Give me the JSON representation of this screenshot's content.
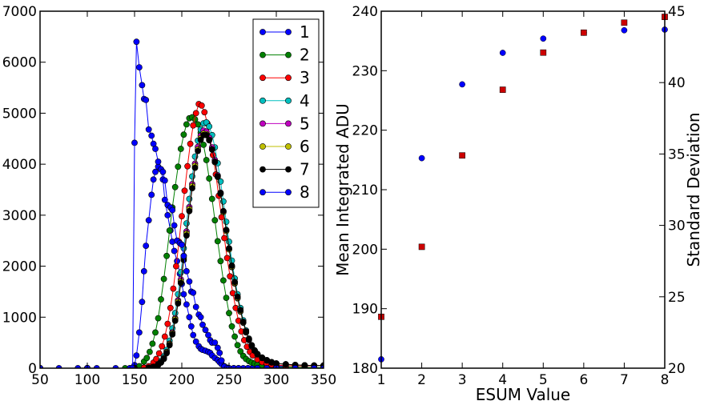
{
  "chart_data": [
    {
      "type": "line",
      "title": "",
      "xlabel": "",
      "ylabel": "",
      "xlim": [
        50,
        350
      ],
      "ylim": [
        0,
        7000
      ],
      "x_ticks": [
        50,
        100,
        150,
        200,
        250,
        300,
        350
      ],
      "y_ticks": [
        0,
        1000,
        2000,
        3000,
        4000,
        5000,
        6000,
        7000
      ],
      "legend_placement": "top-right",
      "grid": false,
      "series": [
        {
          "name": "1",
          "color": "#0000ff",
          "x": [
            50,
            70,
            90,
            110,
            130,
            145,
            148,
            150,
            152,
            155,
            158,
            160,
            162,
            165,
            168,
            170,
            172,
            175,
            178,
            180,
            182,
            185,
            188,
            190,
            192,
            195,
            198,
            200,
            202,
            205,
            208,
            210,
            212,
            215,
            218,
            220,
            222,
            225,
            228,
            230,
            232,
            235,
            238,
            240,
            242,
            245,
            248,
            250,
            255,
            260,
            265,
            270,
            275,
            280,
            285,
            290,
            295,
            300,
            305,
            310,
            320,
            330,
            340,
            350
          ],
          "y": [
            0,
            0,
            0,
            0,
            0,
            0,
            5,
            60,
            250,
            700,
            1300,
            1900,
            2400,
            2900,
            3400,
            3700,
            3850,
            3950,
            3900,
            3700,
            3300,
            3000,
            2700,
            2480,
            2300,
            2100,
            1850,
            1650,
            1450,
            1250,
            1000,
            820,
            650,
            520,
            430,
            380,
            360,
            340,
            320,
            300,
            250,
            200,
            160,
            120,
            80,
            40,
            10,
            0,
            0,
            0,
            0,
            0,
            0,
            0,
            0,
            0,
            0,
            0,
            0,
            0,
            0,
            0,
            0,
            0
          ]
        },
        {
          "name": "2",
          "color": "#008000",
          "x": [
            50,
            100,
            140,
            150,
            155,
            160,
            163,
            166,
            169,
            172,
            175,
            178,
            181,
            184,
            187,
            190,
            193,
            196,
            199,
            202,
            205,
            208,
            211,
            214,
            217,
            220,
            223,
            226,
            229,
            232,
            235,
            238,
            241,
            244,
            247,
            250,
            253,
            256,
            259,
            262,
            265,
            268,
            271,
            274,
            277,
            280,
            285,
            290,
            300,
            310,
            320,
            330,
            340,
            350
          ],
          "y": [
            0,
            0,
            0,
            5,
            40,
            130,
            200,
            320,
            480,
            700,
            980,
            1350,
            1750,
            2200,
            2700,
            3150,
            3550,
            3950,
            4300,
            4580,
            4780,
            4900,
            4920,
            4880,
            4780,
            4620,
            4380,
            4080,
            3720,
            3320,
            2900,
            2490,
            2100,
            1720,
            1380,
            1080,
            820,
            620,
            450,
            330,
            240,
            180,
            140,
            110,
            90,
            70,
            50,
            40,
            30,
            25,
            20,
            15,
            12,
            10
          ]
        },
        {
          "name": "3",
          "color": "#ff0000",
          "x": [
            50,
            100,
            150,
            160,
            165,
            170,
            173,
            176,
            179,
            182,
            185,
            188,
            191,
            194,
            197,
            200,
            203,
            206,
            209,
            212,
            215,
            218,
            221,
            224,
            227,
            230,
            233,
            236,
            239,
            242,
            245,
            248,
            251,
            254,
            257,
            260,
            263,
            266,
            269,
            272,
            275,
            280,
            285,
            290,
            295,
            300,
            310,
            320,
            330,
            340,
            350
          ],
          "y": [
            0,
            0,
            0,
            10,
            40,
            110,
            180,
            290,
            430,
            620,
            870,
            1180,
            1560,
            2000,
            2480,
            2980,
            3480,
            3960,
            4400,
            4760,
            5000,
            5180,
            5150,
            5020,
            4800,
            4520,
            4180,
            3800,
            3380,
            2960,
            2550,
            2160,
            1800,
            1470,
            1180,
            930,
            720,
            550,
            420,
            320,
            250,
            170,
            120,
            90,
            70,
            60,
            50,
            45,
            45,
            45,
            55
          ]
        },
        {
          "name": "4",
          "color": "#00bfbf",
          "x": [
            50,
            100,
            150,
            165,
            170,
            175,
            178,
            181,
            184,
            187,
            190,
            193,
            196,
            199,
            202,
            205,
            208,
            211,
            214,
            217,
            220,
            223,
            226,
            229,
            232,
            235,
            238,
            241,
            244,
            247,
            250,
            253,
            256,
            259,
            262,
            265,
            268,
            271,
            274,
            277,
            280,
            285,
            290,
            295,
            300,
            310,
            320,
            330,
            340,
            350
          ],
          "y": [
            0,
            0,
            0,
            10,
            30,
            80,
            140,
            230,
            360,
            540,
            780,
            1080,
            1450,
            1880,
            2350,
            2840,
            3320,
            3760,
            4150,
            4460,
            4680,
            4800,
            4820,
            4740,
            4570,
            4330,
            4020,
            3660,
            3270,
            2870,
            2480,
            2110,
            1760,
            1450,
            1180,
            940,
            740,
            580,
            450,
            350,
            280,
            200,
            150,
            110,
            90,
            75,
            60,
            55,
            50,
            50
          ]
        },
        {
          "name": "5",
          "color": "#bf00bf",
          "x": [
            50,
            100,
            150,
            165,
            170,
            175,
            178,
            181,
            184,
            187,
            190,
            193,
            196,
            199,
            202,
            205,
            208,
            211,
            214,
            217,
            220,
            223,
            226,
            229,
            232,
            235,
            238,
            241,
            244,
            247,
            250,
            253,
            256,
            259,
            262,
            265,
            268,
            271,
            274,
            277,
            280,
            285,
            290,
            295,
            300,
            310,
            320,
            330,
            340,
            350
          ],
          "y": [
            0,
            0,
            0,
            8,
            25,
            70,
            120,
            200,
            320,
            480,
            700,
            980,
            1330,
            1740,
            2200,
            2680,
            3160,
            3610,
            4010,
            4340,
            4560,
            4660,
            4640,
            4520,
            4330,
            4080,
            3780,
            3440,
            3070,
            2700,
            2330,
            1980,
            1660,
            1370,
            1110,
            890,
            700,
            550,
            430,
            340,
            270,
            200,
            150,
            115,
            90,
            75,
            62,
            55,
            52,
            50
          ]
        },
        {
          "name": "6",
          "color": "#bfbf00",
          "x": [
            50,
            100,
            150,
            165,
            170,
            175,
            178,
            181,
            184,
            187,
            190,
            193,
            196,
            199,
            202,
            205,
            208,
            211,
            214,
            217,
            220,
            223,
            226,
            229,
            232,
            235,
            238,
            241,
            244,
            247,
            250,
            253,
            256,
            259,
            262,
            265,
            268,
            271,
            274,
            277,
            280,
            285,
            290,
            295,
            300,
            310,
            320,
            330,
            340,
            350
          ],
          "y": [
            0,
            0,
            0,
            8,
            25,
            65,
            115,
            190,
            310,
            470,
            680,
            960,
            1300,
            1700,
            2160,
            2640,
            3120,
            3570,
            3970,
            4290,
            4510,
            4600,
            4590,
            4480,
            4290,
            4040,
            3750,
            3420,
            3060,
            2690,
            2330,
            1990,
            1670,
            1380,
            1120,
            900,
            710,
            560,
            440,
            345,
            275,
            205,
            155,
            118,
            92,
            76,
            63,
            56,
            52,
            50
          ]
        },
        {
          "name": "7",
          "color": "#000000",
          "x": [
            50,
            100,
            150,
            165,
            170,
            175,
            178,
            181,
            184,
            187,
            190,
            193,
            196,
            199,
            202,
            205,
            208,
            211,
            214,
            217,
            220,
            223,
            226,
            229,
            232,
            235,
            238,
            241,
            244,
            247,
            250,
            253,
            256,
            259,
            262,
            265,
            268,
            271,
            274,
            277,
            280,
            285,
            290,
            295,
            300,
            310,
            320,
            330,
            340,
            350
          ],
          "y": [
            0,
            0,
            0,
            8,
            22,
            60,
            110,
            180,
            295,
            450,
            660,
            930,
            1270,
            1670,
            2120,
            2600,
            3080,
            3530,
            3930,
            4260,
            4480,
            4570,
            4570,
            4470,
            4290,
            4050,
            3760,
            3430,
            3080,
            2710,
            2350,
            2010,
            1690,
            1400,
            1140,
            910,
            720,
            570,
            445,
            350,
            280,
            208,
            158,
            120,
            94,
            77,
            64,
            57,
            53,
            50
          ]
        },
        {
          "name": "8",
          "color": "#0000ff",
          "x": [
            50,
            100,
            145,
            148,
            150,
            152,
            155,
            158,
            160,
            162,
            165,
            168,
            170,
            172,
            175,
            178,
            180,
            182,
            185,
            188,
            190,
            192,
            195,
            198,
            200,
            202,
            205,
            208,
            210,
            212,
            215,
            218,
            220,
            222,
            225,
            228,
            230,
            232,
            235,
            238,
            240,
            242,
            245,
            248,
            250,
            255,
            260,
            270,
            280,
            290,
            300,
            320,
            340,
            350
          ],
          "y": [
            0,
            0,
            0,
            5,
            4420,
            6400,
            5900,
            5550,
            5280,
            5260,
            4680,
            4560,
            4400,
            4300,
            4050,
            3900,
            3850,
            3680,
            3200,
            3150,
            3100,
            2800,
            2500,
            2450,
            2420,
            2200,
            1900,
            1700,
            1500,
            1480,
            1200,
            1050,
            1000,
            850,
            750,
            650,
            550,
            500,
            500,
            400,
            300,
            150,
            30,
            0,
            0,
            0,
            0,
            0,
            0,
            0,
            0,
            0,
            0,
            0
          ]
        }
      ]
    },
    {
      "type": "scatter",
      "title": "",
      "xlabel": "ESUM Value",
      "ylabel": "Mean Integrated ADU",
      "ylabel_right": "Standard Deviation",
      "xlim": [
        1,
        8
      ],
      "ylim": [
        180,
        240
      ],
      "ylim_right": [
        20,
        45
      ],
      "x_ticks": [
        1,
        2,
        3,
        4,
        5,
        6,
        7,
        8
      ],
      "y_ticks": [
        180,
        190,
        200,
        210,
        220,
        230,
        240
      ],
      "y_ticks_right": [
        20,
        25,
        30,
        35,
        40,
        45
      ],
      "grid": false,
      "series": [
        {
          "axis": "left",
          "marker": "circle",
          "color": "#0000ff",
          "x": [
            1,
            2,
            3,
            4,
            5,
            6,
            7,
            8
          ],
          "y": [
            181.5,
            215.3,
            227.7,
            233.0,
            235.4,
            236.4,
            236.8,
            236.9
          ]
        },
        {
          "axis": "right",
          "marker": "square",
          "color": "#cc0000",
          "x": [
            1,
            2,
            3,
            4,
            5,
            6,
            7,
            8
          ],
          "y": [
            23.6,
            28.5,
            34.9,
            39.5,
            42.1,
            43.5,
            44.2,
            44.6
          ]
        }
      ]
    }
  ]
}
